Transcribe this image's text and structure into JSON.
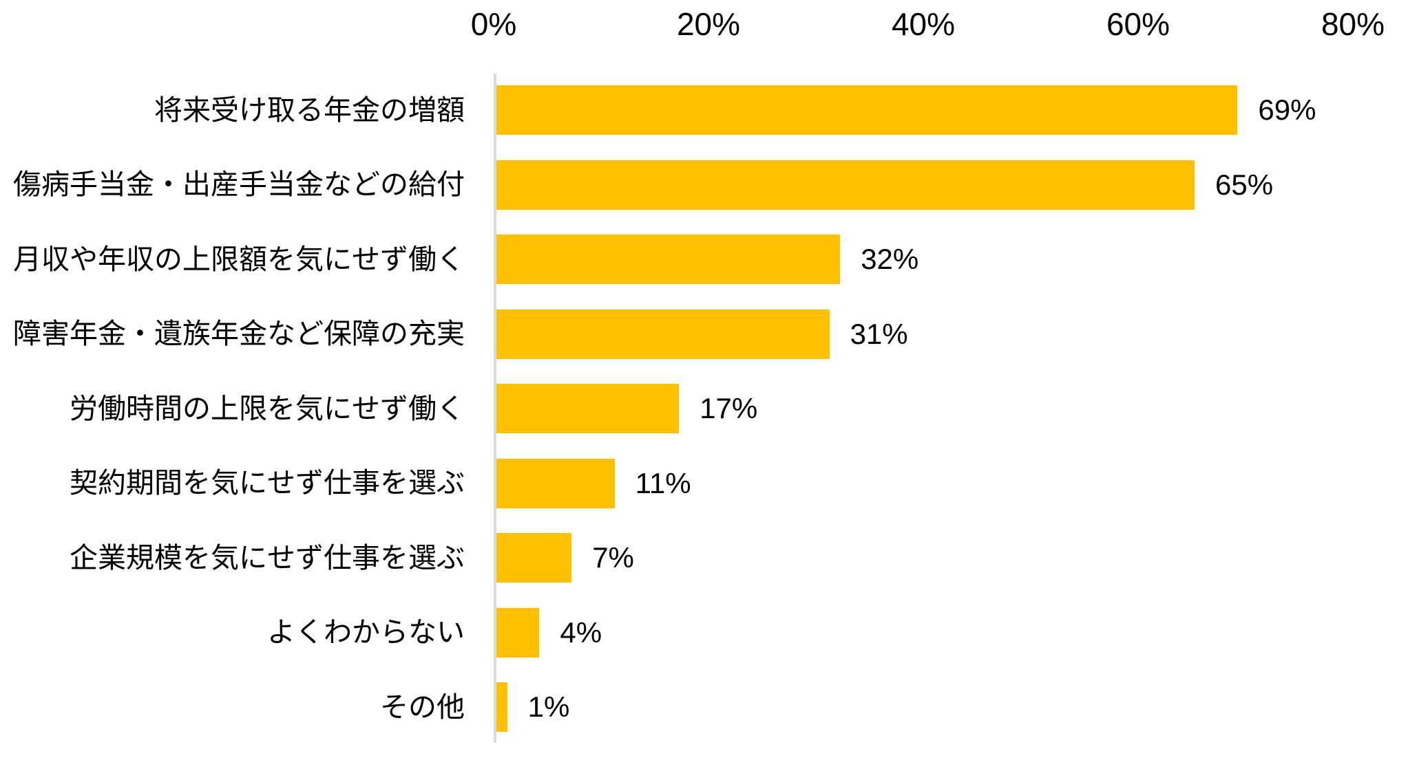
{
  "chart_data": {
    "type": "bar",
    "orientation": "horizontal",
    "title": "",
    "xlabel": "",
    "ylabel": "",
    "categories": [
      "将来受け取る年金の増額",
      "傷病手当金・出産手当金などの給付",
      "月収や年収の上限額を気にせず働く",
      "障害年金・遺族年金など保障の充実",
      "労働時間の上限を気にせず働く",
      "契約期間を気にせず仕事を選ぶ",
      "企業規模を気にせず仕事を選ぶ",
      "よくわからない",
      "その他"
    ],
    "values": [
      69,
      65,
      32,
      31,
      17,
      11,
      7,
      4,
      1
    ],
    "value_labels": [
      "69%",
      "65%",
      "32%",
      "31%",
      "17%",
      "11%",
      "7%",
      "4%",
      "1%"
    ],
    "xlim": [
      0,
      80
    ],
    "x_ticks": [
      "0%",
      "20%",
      "40%",
      "60%",
      "80%"
    ],
    "x_tick_values": [
      0,
      20,
      40,
      60,
      80
    ],
    "axis_position": "top",
    "grid": false,
    "legend": false,
    "bar_color": "#FFC000",
    "axis_line_color": "#D9D9D9",
    "text_color": "#000000"
  }
}
